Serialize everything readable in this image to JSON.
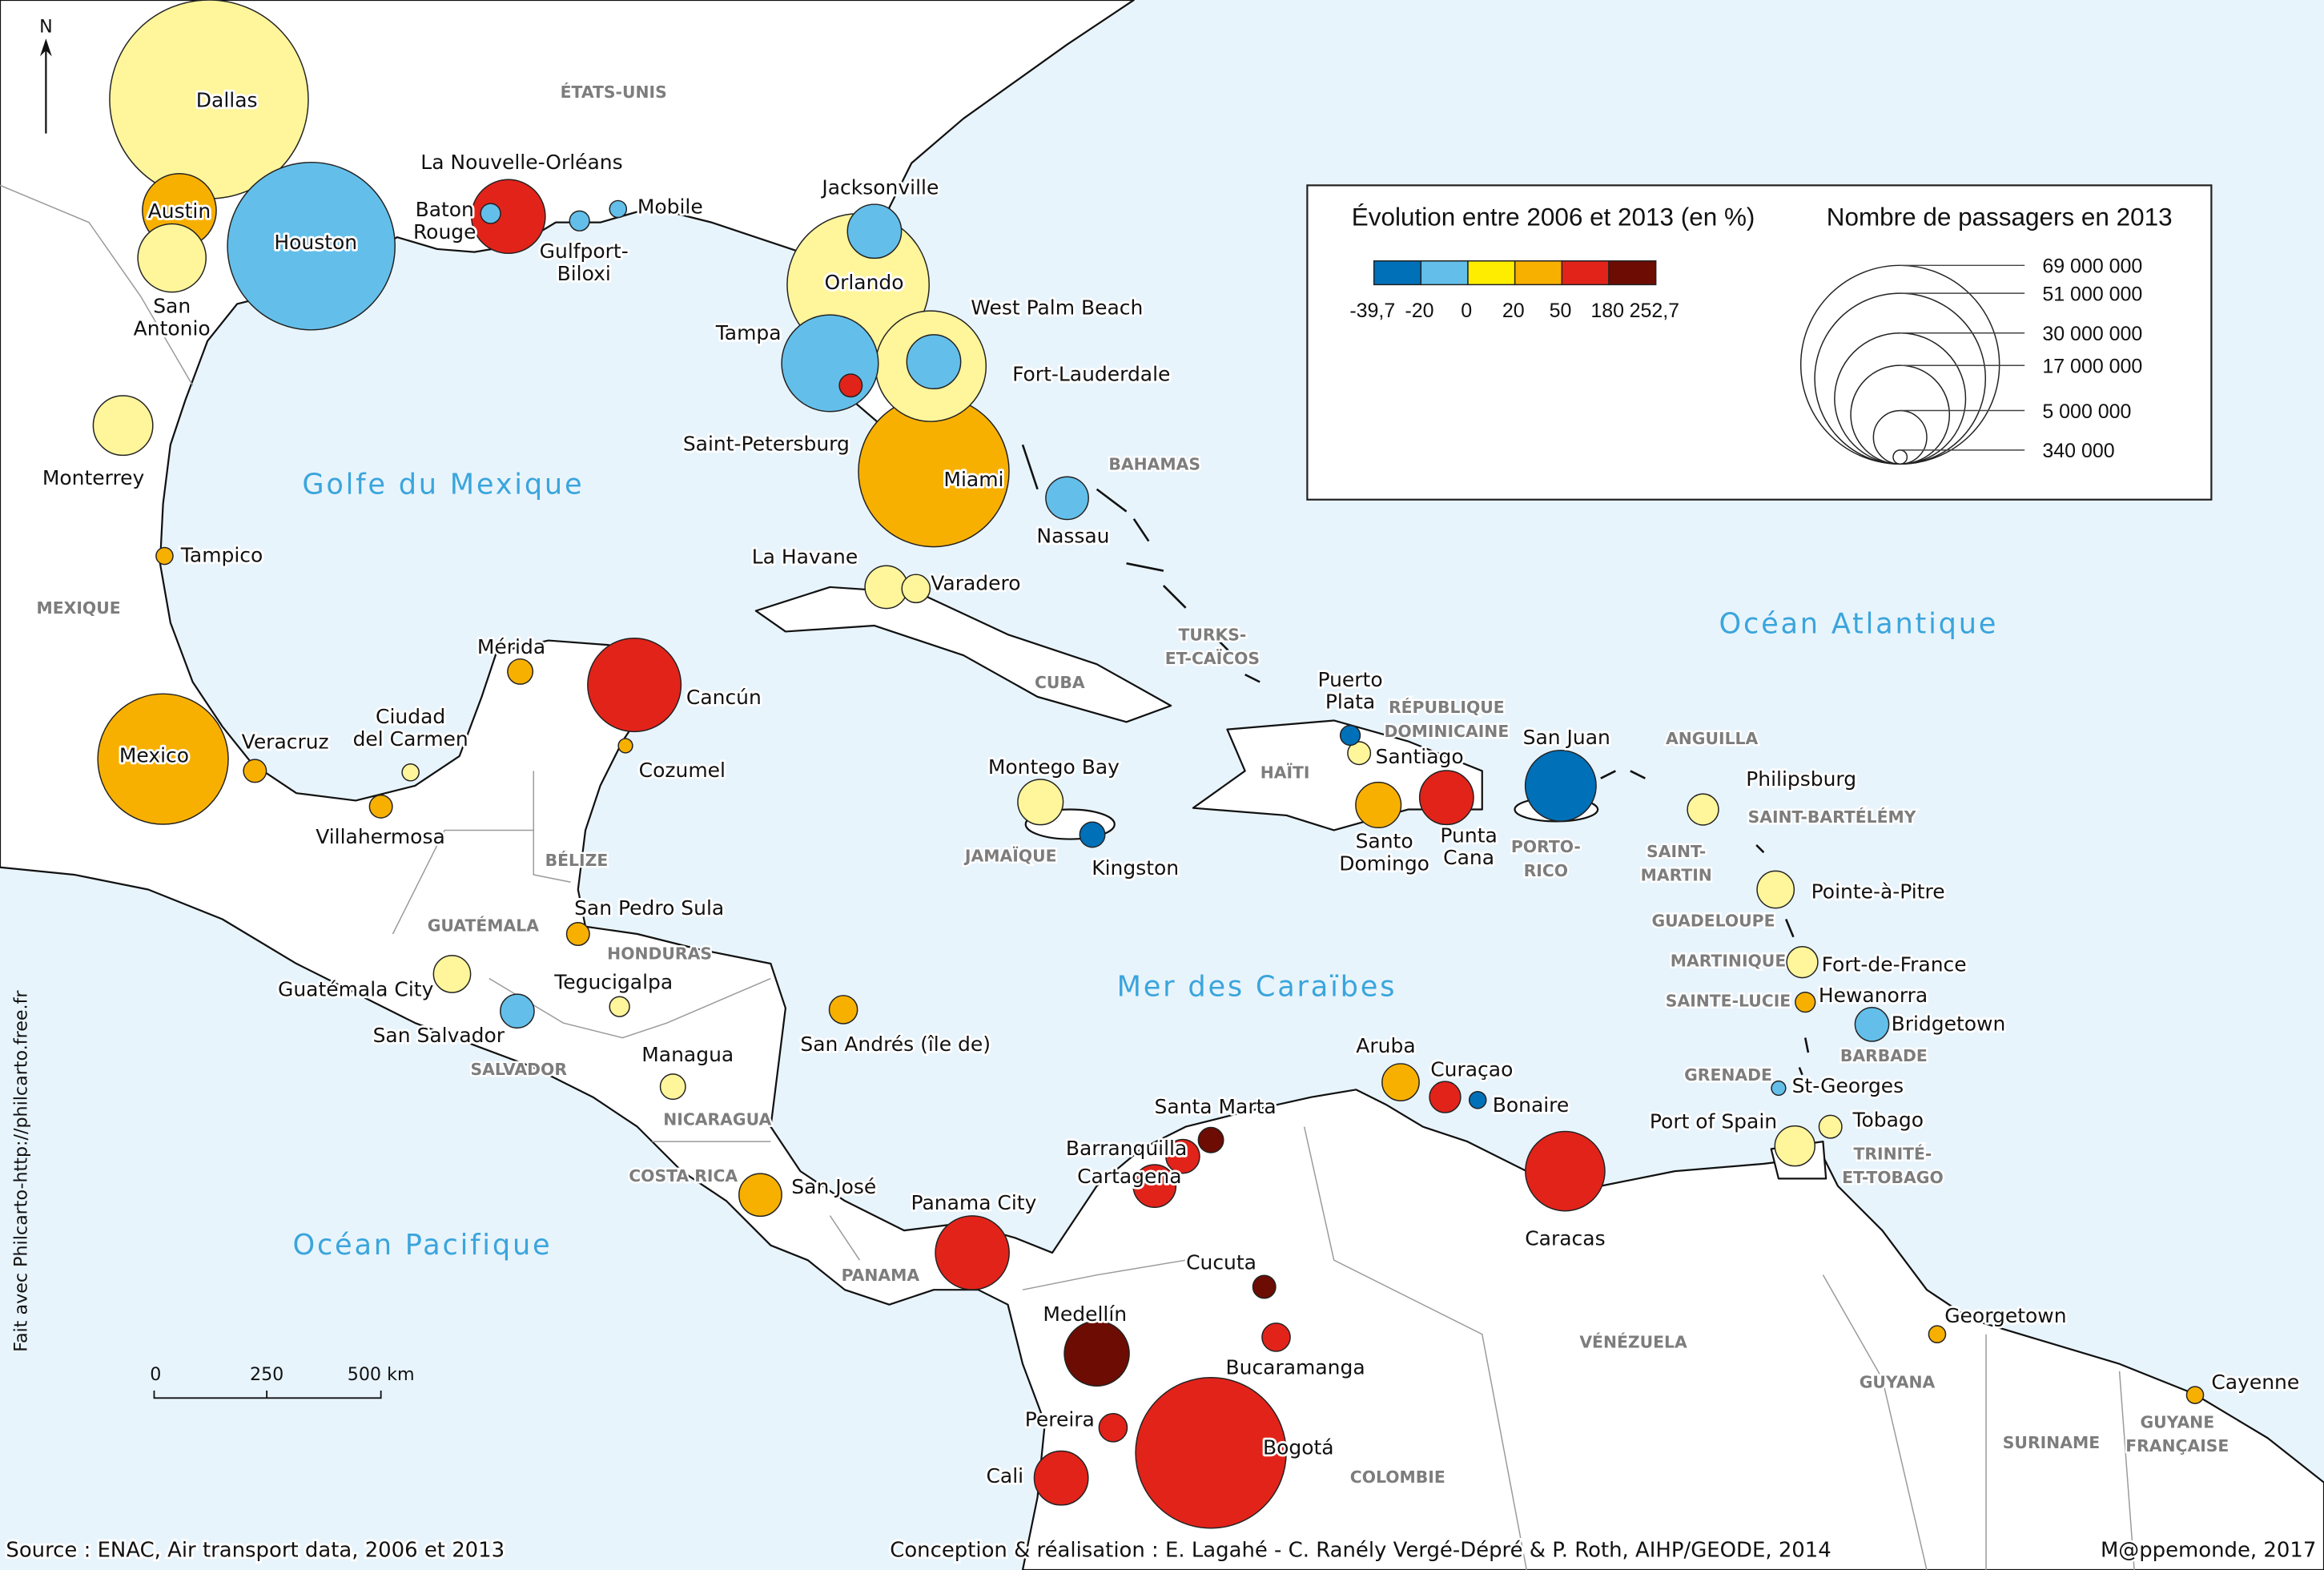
{
  "map": {
    "north_label": "N",
    "seas": [
      "Golfe du Mexique",
      "Océan Atlantique",
      "Mer des Caraïbes",
      "Océan Pacifique"
    ],
    "countries": [
      "ÉTATS-UNIS",
      "MEXIQUE",
      "BAHAMAS",
      "CUBA",
      "TURKS-ET-CAÏCOS",
      "HAÏTI",
      "RÉPUBLIQUE DOMINICAINE",
      "JAMAÏQUE",
      "PORTO-RICO",
      "ANGUILLA",
      "SAINT-BARTÉLÉMY",
      "SAINT-MARTIN",
      "GUADELOUPE",
      "MARTINIQUE",
      "SAINTE-LUCIE",
      "BARBADE",
      "GRENADE",
      "TRINITÉ-ET-TOBAGO",
      "BÉLIZE",
      "GUATÉMALA",
      "HONDURAS",
      "SALVADOR",
      "NICARAGUA",
      "COSTA RICA",
      "PANAMA",
      "VÉNÉZUELA",
      "COLOMBIE",
      "GUYANA",
      "SURINAME",
      "GUYANE FRANÇAISE"
    ],
    "scale_bar": {
      "labels": [
        "0",
        "250",
        "500 km"
      ]
    },
    "credit_vertical": "Fait avec Philcarto-http://philcarto.free.fr",
    "source": "Source : ENAC, Air transport data, 2006 et 2013",
    "conception": "Conception & réalisation : E. Lagahé - C. Ranély Vergé-Dépré & P. Roth, AIHP/GEODE, 2014",
    "publisher": "M@ppemonde, 2017",
    "circle_colors": [
      "#0070b8",
      "#63bfea",
      "#fff59b",
      "#f8b000",
      "#e2231a",
      "#6d0c03"
    ],
    "water_color": "#e8f4fc"
  },
  "legend": {
    "evolution_title": "Évolution entre 2006 et 2013 (en %)",
    "colors": [
      "#0070b8",
      "#63bfea",
      "#ffed00",
      "#f8b000",
      "#e2231a",
      "#6d0c03"
    ],
    "class_breaks": [
      "-39,7",
      "-20",
      "0",
      "20",
      "50",
      "180",
      "252,7"
    ],
    "size_title": "Nombre de passagers en 2013",
    "size_values": [
      {
        "label": "69 000 000",
        "value": 69000000
      },
      {
        "label": "51 000 000",
        "value": 51000000
      },
      {
        "label": "30 000 000",
        "value": 30000000
      },
      {
        "label": "17 000 000",
        "value": 17000000
      },
      {
        "label": "5 000 000",
        "value": 5000000
      },
      {
        "label": "340 000",
        "value": 340000
      }
    ]
  },
  "cities": [
    {
      "name": "Dallas",
      "passengers_2013": 69000000,
      "evolution_class": 2
    },
    {
      "name": "Houston",
      "passengers_2013": 49000000,
      "evolution_class": 1
    },
    {
      "name": "Austin",
      "passengers_2013": 9500000,
      "evolution_class": 3
    },
    {
      "name": "San Antonio",
      "passengers_2013": 8100000,
      "evolution_class": 2
    },
    {
      "name": "Monterrey",
      "passengers_2013": 6200000,
      "evolution_class": 2
    },
    {
      "name": "Mexico",
      "passengers_2013": 29800000,
      "evolution_class": 3
    },
    {
      "name": "Tampico",
      "passengers_2013": 500000,
      "evolution_class": 3
    },
    {
      "name": "Veracruz",
      "passengers_2013": 900000,
      "evolution_class": 3
    },
    {
      "name": "Villahermosa",
      "passengers_2013": 900000,
      "evolution_class": 3
    },
    {
      "name": "Ciudad del Carmen",
      "passengers_2013": 500000,
      "evolution_class": 2
    },
    {
      "name": "Mérida",
      "passengers_2013": 1100000,
      "evolution_class": 3
    },
    {
      "name": "Cancún",
      "passengers_2013": 15300000,
      "evolution_class": 4
    },
    {
      "name": "Cozumel",
      "passengers_2013": 350000,
      "evolution_class": 3
    },
    {
      "name": "La Nouvelle-Orléans",
      "passengers_2013": 9500000,
      "evolution_class": 4
    },
    {
      "name": "Baton Rouge",
      "passengers_2013": 700000,
      "evolution_class": 1
    },
    {
      "name": "Gulfport-Biloxi",
      "passengers_2013": 700000,
      "evolution_class": 1
    },
    {
      "name": "Mobile",
      "passengers_2013": 500000,
      "evolution_class": 1
    },
    {
      "name": "Jacksonville",
      "passengers_2013": 5100000,
      "evolution_class": 1
    },
    {
      "name": "Orlando",
      "passengers_2013": 35200000,
      "evolution_class": 2
    },
    {
      "name": "Tampa",
      "passengers_2013": 16300000,
      "evolution_class": 1
    },
    {
      "name": "Saint-Petersburg",
      "passengers_2013": 900000,
      "evolution_class": 4
    },
    {
      "name": "Fort-Lauderdale",
      "passengers_2013": 21400000,
      "evolution_class": 2
    },
    {
      "name": "West Palm Beach",
      "passengers_2013": 5100000,
      "evolution_class": 1
    },
    {
      "name": "Miami",
      "passengers_2013": 39600000,
      "evolution_class": 3
    },
    {
      "name": "Nassau",
      "passengers_2013": 3200000,
      "evolution_class": 1
    },
    {
      "name": "La Havane",
      "passengers_2013": 3200000,
      "evolution_class": 2
    },
    {
      "name": "Varadero",
      "passengers_2013": 1400000,
      "evolution_class": 2
    },
    {
      "name": "Montego Bay",
      "passengers_2013": 3600000,
      "evolution_class": 2
    },
    {
      "name": "Kingston",
      "passengers_2013": 1100000,
      "evolution_class": 0
    },
    {
      "name": "Puerto Plata",
      "passengers_2013": 700000,
      "evolution_class": 0
    },
    {
      "name": "Santiago",
      "passengers_2013": 900000,
      "evolution_class": 2
    },
    {
      "name": "Santo Domingo",
      "passengers_2013": 3600000,
      "evolution_class": 3
    },
    {
      "name": "Punta Cana",
      "passengers_2013": 5100000,
      "evolution_class": 4
    },
    {
      "name": "San Juan",
      "passengers_2013": 8800000,
      "evolution_class": 0
    },
    {
      "name": "Philipsburg",
      "passengers_2013": 1700000,
      "evolution_class": 2
    },
    {
      "name": "Pointe-à-Pitre",
      "passengers_2013": 2400000,
      "evolution_class": 2
    },
    {
      "name": "Fort-de-France",
      "passengers_2013": 1700000,
      "evolution_class": 2
    },
    {
      "name": "Hewanorra",
      "passengers_2013": 700000,
      "evolution_class": 3
    },
    {
      "name": "Bridgetown",
      "passengers_2013": 2000000,
      "evolution_class": 1
    },
    {
      "name": "St-Georges",
      "passengers_2013": 350000,
      "evolution_class": 1
    },
    {
      "name": "Tobago",
      "passengers_2013": 900000,
      "evolution_class": 2
    },
    {
      "name": "Port of Spain",
      "passengers_2013": 2800000,
      "evolution_class": 2
    },
    {
      "name": "Aruba",
      "passengers_2013": 2400000,
      "evolution_class": 3
    },
    {
      "name": "Curaçao",
      "passengers_2013": 1700000,
      "evolution_class": 4
    },
    {
      "name": "Bonaire",
      "passengers_2013": 500000,
      "evolution_class": 0
    },
    {
      "name": "Caracas",
      "passengers_2013": 11000000,
      "evolution_class": 4
    },
    {
      "name": "Georgetown",
      "passengers_2013": 500000,
      "evolution_class": 3
    },
    {
      "name": "Cayenne",
      "passengers_2013": 500000,
      "evolution_class": 3
    },
    {
      "name": "Santa Marta",
      "passengers_2013": 1100000,
      "evolution_class": 5
    },
    {
      "name": "Barranquilla",
      "passengers_2013": 2000000,
      "evolution_class": 4
    },
    {
      "name": "Cartagena",
      "passengers_2013": 3200000,
      "evolution_class": 4
    },
    {
      "name": "Cucuta",
      "passengers_2013": 900000,
      "evolution_class": 5
    },
    {
      "name": "Bucaramanga",
      "passengers_2013": 1400000,
      "evolution_class": 4
    },
    {
      "name": "Medellín",
      "passengers_2013": 7400000,
      "evolution_class": 5
    },
    {
      "name": "Pereira",
      "passengers_2013": 1400000,
      "evolution_class": 4
    },
    {
      "name": "Cali",
      "passengers_2013": 5100000,
      "evolution_class": 4
    },
    {
      "name": "Bogotá",
      "passengers_2013": 39600000,
      "evolution_class": 4
    },
    {
      "name": "Panama City",
      "passengers_2013": 9500000,
      "evolution_class": 4
    },
    {
      "name": "San José",
      "passengers_2013": 3200000,
      "evolution_class": 3
    },
    {
      "name": "San Andrés (île de)",
      "passengers_2013": 1400000,
      "evolution_class": 3
    },
    {
      "name": "Managua",
      "passengers_2013": 1100000,
      "evolution_class": 2
    },
    {
      "name": "Tegucigalpa",
      "passengers_2013": 700000,
      "evolution_class": 2
    },
    {
      "name": "San Pedro Sula",
      "passengers_2013": 900000,
      "evolution_class": 3
    },
    {
      "name": "Guatémala City",
      "passengers_2013": 2400000,
      "evolution_class": 2
    },
    {
      "name": "San Salvador",
      "passengers_2013": 2000000,
      "evolution_class": 1
    }
  ]
}
